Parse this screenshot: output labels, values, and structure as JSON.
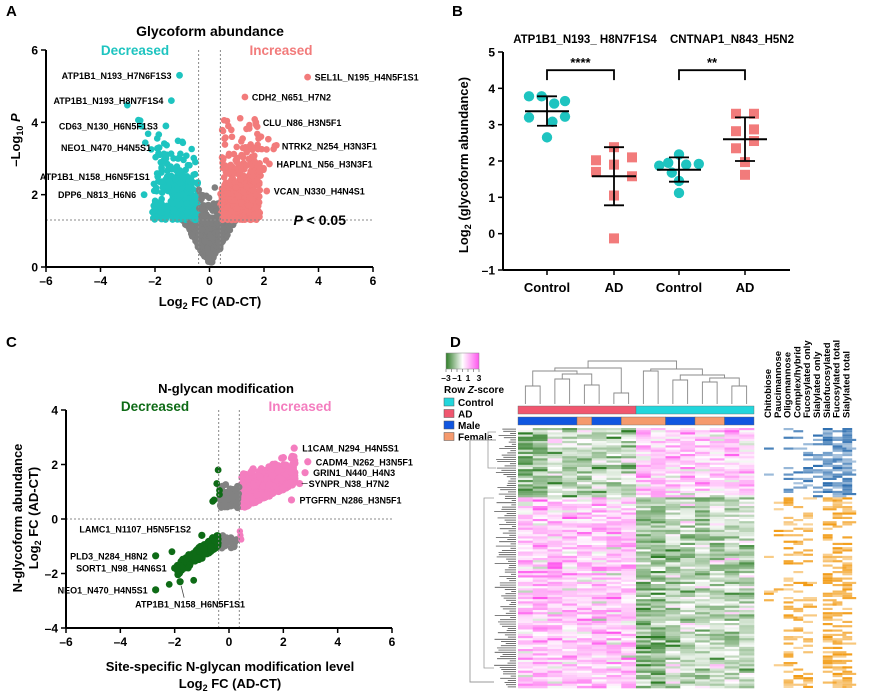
{
  "panels": {
    "A": "A",
    "B": "B",
    "C": "C",
    "D": "D"
  },
  "chart_data": [
    {
      "panel": "A",
      "type": "scatter",
      "title": "Glycoform abundance",
      "xlabel": "Log2 FC (AD-CT)",
      "xlabel_main": "Log",
      "xlabel_sub": "2",
      "xlabel_rest": " FC (AD-CT)",
      "ylabel_main": "–Log",
      "ylabel_sub": "10",
      "ylabel_rest": " P",
      "xlim": [
        -6,
        6
      ],
      "ylim": [
        0,
        6
      ],
      "xticks": [
        "–6",
        "–4",
        "–2",
        "0",
        "2",
        "4",
        "6"
      ],
      "xtick_values": [
        -6,
        -4,
        -2,
        0,
        2,
        4,
        6
      ],
      "yticks": [
        "0",
        "2",
        "4",
        "6"
      ],
      "ytick_values": [
        0,
        2,
        4,
        6
      ],
      "fc_threshold": 0.4,
      "p_threshold_log": 1.3,
      "threshold_label": "P < 0.05",
      "threshold_label_p": "P",
      "threshold_label_rest": " < 0.05",
      "decreased_label": "Decreased",
      "increased_label": "Increased",
      "colors": {
        "decreased": "#1ec4c0",
        "increased": "#f27b7b",
        "ns": "#7f7f7f"
      },
      "annotations": [
        {
          "label": "ATP1B1_N193_H7N6F1S3",
          "x": -1.1,
          "y": 5.3,
          "side": "left"
        },
        {
          "label": "ATP1B1_N193_H8N7F1S4",
          "x": -1.4,
          "y": 4.6,
          "side": "left"
        },
        {
          "label": "CD63_N130_H6N5F1S3",
          "x": -1.6,
          "y": 3.9,
          "side": "left"
        },
        {
          "label": "NEO1_N470_H4N5S1",
          "x": -1.85,
          "y": 3.3,
          "side": "left"
        },
        {
          "label": "ATP1B1_N158_H6N5F1S1",
          "x": -1.9,
          "y": 2.5,
          "side": "left"
        },
        {
          "label": "DPP6_N813_H6N6",
          "x": -2.4,
          "y": 2.0,
          "side": "left"
        },
        {
          "label": "SEL1L_N195_H4N5F1S1",
          "x": 3.6,
          "y": 5.25,
          "side": "right"
        },
        {
          "label": "CDH2_N651_H7N2",
          "x": 1.3,
          "y": 4.7,
          "side": "right"
        },
        {
          "label": "CLU_N86_H3N5F1",
          "x": 1.7,
          "y": 4.0,
          "side": "right"
        },
        {
          "label": "NTRK2_N254_H3N3F1",
          "x": 2.4,
          "y": 3.35,
          "side": "right"
        },
        {
          "label": "HAPLN1_N56_H3N3F1",
          "x": 2.2,
          "y": 2.85,
          "side": "right"
        },
        {
          "label": "VCAN_N330_H4N4S1",
          "x": 2.1,
          "y": 2.1,
          "side": "right"
        }
      ]
    },
    {
      "panel": "B",
      "type": "scatter",
      "title_left": "ATP1B1_N193_ H8N7F1S4",
      "title_right": "CNTNAP1_N843_H5N2",
      "ylabel_main": "Log",
      "ylabel_sub": "2",
      "ylabel_rest": " (glycoform abundance)",
      "ylim": [
        -1,
        5
      ],
      "yticks": [
        "–1",
        "0",
        "1",
        "2",
        "3",
        "4",
        "5"
      ],
      "ytick_values": [
        -1,
        0,
        1,
        2,
        3,
        4,
        5
      ],
      "categories": [
        "Control",
        "AD",
        "Control",
        "AD"
      ],
      "significance": [
        {
          "from": 0,
          "to": 1,
          "label": "****"
        },
        {
          "from": 2,
          "to": 3,
          "label": "**"
        }
      ],
      "series": [
        {
          "name": "Control",
          "group": "ATP1B1_N193_H8N7F1S4",
          "marker": "circle",
          "color": "#1ec4c0",
          "values": [
            3.78,
            3.78,
            3.65,
            3.58,
            3.2,
            3.22,
            3.08,
            2.65
          ],
          "mean": 3.37,
          "sd_low": 2.97,
          "sd_high": 3.78
        },
        {
          "name": "AD",
          "group": "ATP1B1_N193_H8N7F1S4",
          "marker": "square",
          "color": "#f27b7b",
          "values": [
            2.38,
            2.02,
            2.1,
            1.9,
            1.7,
            1.58,
            1.05,
            -0.13
          ],
          "mean": 1.58,
          "sd_low": 0.78,
          "sd_high": 2.38
        },
        {
          "name": "Control",
          "group": "CNTNAP1_N843_H5N2",
          "marker": "circle",
          "color": "#1ec4c0",
          "values": [
            2.18,
            1.95,
            1.87,
            1.92,
            1.9,
            1.68,
            1.45,
            1.12
          ],
          "mean": 1.76,
          "sd_low": 1.43,
          "sd_high": 2.1
        },
        {
          "name": "AD",
          "group": "CNTNAP1_N843_H5N2",
          "marker": "square",
          "color": "#f27b7b",
          "values": [
            3.3,
            3.3,
            2.82,
            2.87,
            2.55,
            2.35,
            1.97,
            1.62
          ],
          "mean": 2.6,
          "sd_low": 2.0,
          "sd_high": 3.2
        }
      ],
      "jitter": [
        [
          -0.5,
          -0.15,
          0.5,
          0.2,
          -0.5,
          0.5,
          0.15,
          0
        ],
        [
          0,
          -0.5,
          0.5,
          0,
          -0.5,
          0.5,
          0,
          0
        ],
        [
          0,
          -0.3,
          -0.55,
          0.55,
          0.2,
          -0.2,
          0,
          0
        ],
        [
          -0.25,
          0.25,
          -0.25,
          0.25,
          0.25,
          -0.25,
          0,
          0
        ]
      ]
    },
    {
      "panel": "C",
      "type": "scatter",
      "title": "N-glycan modification",
      "xlabel_line1": "Site-specific N-glycan modification level",
      "xlabel_main": "Log",
      "xlabel_sub": "2",
      "xlabel_rest": " FC (AD-CT)",
      "ylabel_line1": "N-glycoform abundance",
      "ylabel_main": "Log",
      "ylabel_sub": "2",
      "ylabel_rest": " FC (AD-CT)",
      "xlim": [
        -6,
        6
      ],
      "ylim": [
        -4,
        4
      ],
      "xticks": [
        "–6",
        "–4",
        "–2",
        "0",
        "2",
        "4",
        "6"
      ],
      "xtick_values": [
        -6,
        -4,
        -2,
        0,
        2,
        4,
        6
      ],
      "yticks": [
        "–4",
        "–2",
        "0",
        "2",
        "4"
      ],
      "ytick_values": [
        -4,
        -2,
        0,
        2,
        4
      ],
      "x_threshold": 0.38,
      "decreased_label": "Decreased",
      "increased_label": "Increased",
      "colors": {
        "decreased": "#0e6b16",
        "increased": "#f47dbf",
        "ns": "#828282"
      },
      "annotations": [
        {
          "label": "L1CAM_N294_H4N5S1",
          "x": 2.4,
          "y": 2.6,
          "side": "right"
        },
        {
          "label": "CADM4_N262_H3N5F1",
          "x": 2.9,
          "y": 2.1,
          "side": "right"
        },
        {
          "label": "GRIN1_N440_H4N3",
          "x": 2.8,
          "y": 1.7,
          "side": "right"
        },
        {
          "label": "SYNPR_N38_H7N2",
          "x": 2.6,
          "y": 1.3,
          "side": "right",
          "leader": true
        },
        {
          "label": "PTGFRN_N286_H3N5F1",
          "x": 2.3,
          "y": 0.7,
          "side": "right"
        },
        {
          "label": "LAMC1_N1107_H5N5F1S2",
          "x": -1.0,
          "y": -0.6,
          "side": "left",
          "leader": true
        },
        {
          "label": "PLD3_N284_H8N2",
          "x": -2.7,
          "y": -1.35,
          "side": "left"
        },
        {
          "label": "SORT1_N98_H4N6S1",
          "x": -2.0,
          "y": -1.8,
          "side": "left"
        },
        {
          "label": "NEO1_N470_H4N5S1",
          "x": -2.7,
          "y": -2.6,
          "side": "left"
        },
        {
          "label": "ATP1B1_N158_H6N5F1S1",
          "x": -1.8,
          "y": -2.3,
          "side": "below",
          "leader": true
        }
      ]
    },
    {
      "panel": "D",
      "type": "heatmap",
      "legend_title": "Row Z-score",
      "legend_title_main": "Row ",
      "legend_title_italic": "Z",
      "legend_title_rest": "-score",
      "scale_ticks": [
        "–3",
        "–1",
        "1",
        "3"
      ],
      "scale_range": [
        -3,
        3
      ],
      "scale_colors": {
        "low": "#2e7d27",
        "mid": "#ffffff",
        "high": "#ff55ee"
      },
      "group_legend": [
        {
          "label": "Control",
          "color": "#22d6dc"
        },
        {
          "label": "AD",
          "color": "#f0566f"
        },
        {
          "label": "Male",
          "color": "#1156e0"
        },
        {
          "label": "Female",
          "color": "#f59a6e"
        }
      ],
      "columns": 16,
      "column_groups": [
        "AD",
        "AD",
        "AD",
        "AD",
        "AD",
        "AD",
        "AD",
        "AD",
        "Control",
        "Control",
        "Control",
        "Control",
        "Control",
        "Control",
        "Control",
        "Control"
      ],
      "column_sex": [
        "Male",
        "Male",
        "Male",
        "Male",
        "Female",
        "Male",
        "Male",
        "Female",
        "Female",
        "Female",
        "Male",
        "Male",
        "Female",
        "Female",
        "Male",
        "Male"
      ],
      "structure_labels": [
        "Chitobiose",
        "Paucimannose",
        "Oligomannose",
        "Complex/hybrid",
        "Fucosylated only",
        "Sialylated only",
        "Sialofucosylated",
        "Fucosylated total",
        "Sialylated total"
      ],
      "structure_colors": {
        "upper_cluster": "#2e6fb0",
        "lower_cluster": "#f29a12"
      },
      "rows": 120,
      "upper_cluster_fraction": 0.27
    }
  ]
}
